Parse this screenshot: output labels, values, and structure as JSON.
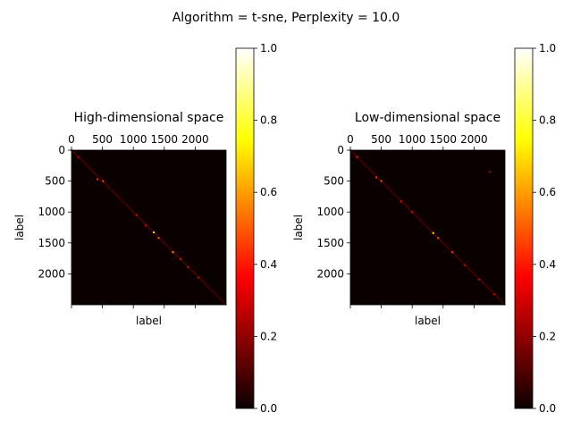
{
  "suptitle": "Algorithm = t-sne, Perplexity = 10.0",
  "colormap": "hot",
  "colormap_stops": [
    "#0b0000",
    "#ff0000",
    "#ffff00",
    "#ffffff"
  ],
  "chart_data": [
    {
      "type": "heatmap",
      "title": "High-dimensional space",
      "xlabel": "label",
      "ylabel": "label",
      "x_range": [
        0,
        2500
      ],
      "y_range": [
        0,
        2500
      ],
      "x_ticks": [
        0,
        500,
        1000,
        1500,
        2000
      ],
      "x_tick_labels": [
        "0",
        "500",
        "1000",
        "1500",
        "2000"
      ],
      "y_ticks": [
        0,
        500,
        1000,
        1500,
        2000
      ],
      "y_tick_labels": [
        "0",
        "500",
        "1000",
        "1500",
        "2000"
      ],
      "x_axis_position": "top",
      "colorbar": {
        "range": [
          0,
          1
        ],
        "ticks": [
          0,
          0.2,
          0.4,
          0.6,
          0.8,
          1.0
        ],
        "tick_labels": [
          "0.0",
          "0.2",
          "0.4",
          "0.6",
          "0.8",
          "1.0"
        ]
      },
      "pattern": "sparse similarity matrix concentrated along the diagonal; background near 0",
      "hotspots": [
        {
          "x": 110,
          "y": 110,
          "value": 0.3
        },
        {
          "x": 420,
          "y": 470,
          "value": 0.45
        },
        {
          "x": 510,
          "y": 500,
          "value": 0.5
        },
        {
          "x": 1050,
          "y": 1050,
          "value": 0.35
        },
        {
          "x": 1200,
          "y": 1220,
          "value": 0.3
        },
        {
          "x": 1330,
          "y": 1330,
          "value": 0.7
        },
        {
          "x": 1410,
          "y": 1420,
          "value": 0.5
        },
        {
          "x": 1640,
          "y": 1650,
          "value": 0.6
        },
        {
          "x": 1760,
          "y": 1760,
          "value": 0.35
        },
        {
          "x": 1880,
          "y": 1890,
          "value": 0.3
        },
        {
          "x": 2050,
          "y": 2060,
          "value": 0.3
        }
      ]
    },
    {
      "type": "heatmap",
      "title": "Low-dimensional space",
      "xlabel": "label",
      "ylabel": "label",
      "x_range": [
        0,
        2500
      ],
      "y_range": [
        0,
        2500
      ],
      "x_ticks": [
        0,
        500,
        1000,
        1500,
        2000
      ],
      "x_tick_labels": [
        "0",
        "500",
        "1000",
        "1500",
        "2000"
      ],
      "y_ticks": [
        0,
        500,
        1000,
        1500,
        2000
      ],
      "y_tick_labels": [
        "0",
        "500",
        "1000",
        "1500",
        "2000"
      ],
      "x_axis_position": "top",
      "colorbar": {
        "range": [
          0,
          1
        ],
        "ticks": [
          0,
          0.2,
          0.4,
          0.6,
          0.8,
          1.0
        ],
        "tick_labels": [
          "0.0",
          "0.2",
          "0.4",
          "0.6",
          "0.8",
          "1.0"
        ]
      },
      "pattern": "sparse similarity matrix concentrated along the diagonal; background near 0",
      "hotspots": [
        {
          "x": 110,
          "y": 110,
          "value": 0.4
        },
        {
          "x": 420,
          "y": 440,
          "value": 0.45
        },
        {
          "x": 500,
          "y": 500,
          "value": 0.5
        },
        {
          "x": 820,
          "y": 830,
          "value": 0.35
        },
        {
          "x": 1000,
          "y": 1000,
          "value": 0.35
        },
        {
          "x": 1340,
          "y": 1340,
          "value": 0.7
        },
        {
          "x": 1420,
          "y": 1420,
          "value": 0.5
        },
        {
          "x": 1650,
          "y": 1650,
          "value": 0.45
        },
        {
          "x": 1850,
          "y": 1860,
          "value": 0.3
        },
        {
          "x": 2080,
          "y": 2090,
          "value": 0.3
        },
        {
          "x": 2330,
          "y": 2330,
          "value": 0.3
        },
        {
          "x": 2250,
          "y": 350,
          "value": 0.25
        }
      ]
    }
  ]
}
